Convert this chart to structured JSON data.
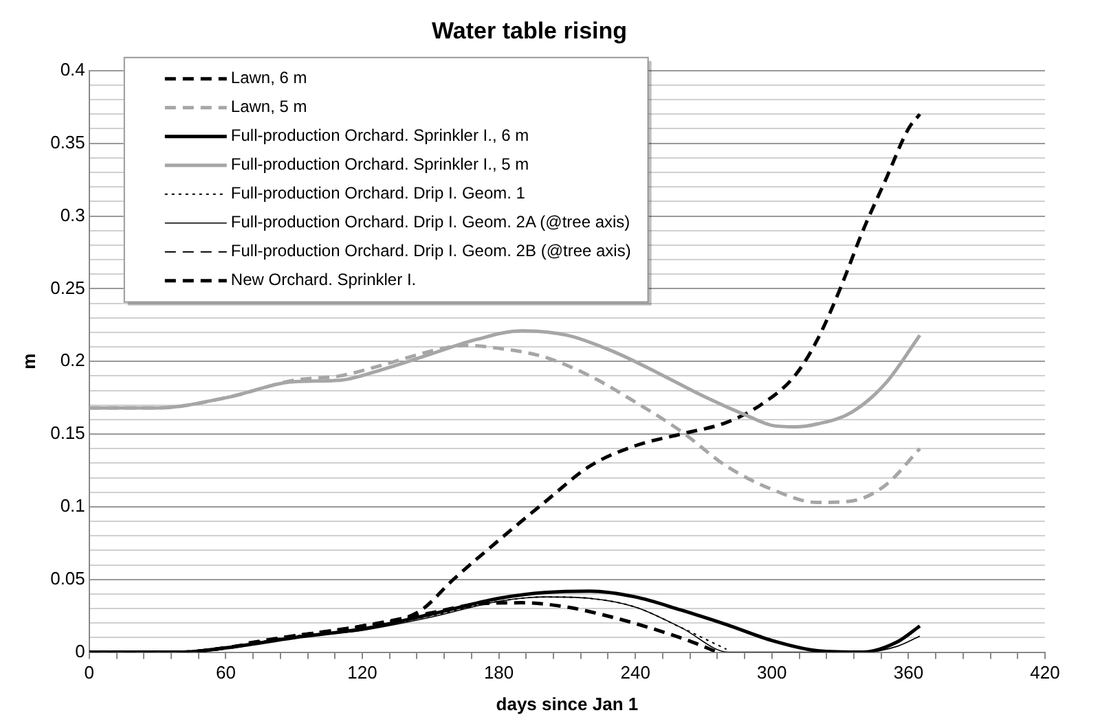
{
  "chart_data": {
    "type": "line",
    "title": "Water table rising",
    "xlabel": "days since Jan 1",
    "ylabel": "m",
    "xlim": [
      0,
      420
    ],
    "xticks": [
      0,
      {
        "value": 12,
        "label": null
      },
      {
        "value": 24,
        "label": null
      },
      {
        "value": 36,
        "label": null
      },
      {
        "value": 48,
        "label": null
      },
      60,
      {
        "value": 72,
        "label": null
      },
      {
        "value": 84,
        "label": null
      },
      {
        "value": 96,
        "label": null
      },
      {
        "value": 108,
        "label": null
      },
      120,
      {
        "value": 132,
        "label": null
      },
      {
        "value": 144,
        "label": null
      },
      {
        "value": 156,
        "label": null
      },
      {
        "value": 168,
        "label": null
      },
      180,
      {
        "value": 192,
        "label": null
      },
      {
        "value": 204,
        "label": null
      },
      {
        "value": 216,
        "label": null
      },
      {
        "value": 228,
        "label": null
      },
      240,
      {
        "value": 252,
        "label": null
      },
      {
        "value": 264,
        "label": null
      },
      {
        "value": 276,
        "label": null
      },
      {
        "value": 288,
        "label": null
      },
      300,
      {
        "value": 312,
        "label": null
      },
      {
        "value": 324,
        "label": null
      },
      {
        "value": 336,
        "label": null
      },
      {
        "value": 348,
        "label": null
      },
      360,
      {
        "value": 372,
        "label": null
      },
      {
        "value": 384,
        "label": null
      },
      {
        "value": 396,
        "label": null
      },
      {
        "value": 408,
        "label": null
      },
      420
    ],
    "ylim": [
      0,
      0.4
    ],
    "yticks": [
      0,
      {
        "value": 0.01,
        "label": null
      },
      {
        "value": 0.02,
        "label": null
      },
      {
        "value": 0.03,
        "label": null
      },
      {
        "value": 0.04,
        "label": null
      },
      0.05,
      {
        "value": 0.06,
        "label": null
      },
      {
        "value": 0.07,
        "label": null
      },
      {
        "value": 0.08,
        "label": null
      },
      {
        "value": 0.09,
        "label": null
      },
      0.1,
      {
        "value": 0.11,
        "label": null
      },
      {
        "value": 0.12,
        "label": null
      },
      {
        "value": 0.13,
        "label": null
      },
      {
        "value": 0.14,
        "label": null
      },
      0.15,
      {
        "value": 0.16,
        "label": null
      },
      {
        "value": 0.17,
        "label": null
      },
      {
        "value": 0.18,
        "label": null
      },
      {
        "value": 0.19,
        "label": null
      },
      0.2,
      {
        "value": 0.21,
        "label": null
      },
      {
        "value": 0.22,
        "label": null
      },
      {
        "value": 0.23,
        "label": null
      },
      {
        "value": 0.24,
        "label": null
      },
      0.25,
      {
        "value": 0.26,
        "label": null
      },
      {
        "value": 0.27,
        "label": null
      },
      {
        "value": 0.28,
        "label": null
      },
      {
        "value": 0.29,
        "label": null
      },
      0.3,
      {
        "value": 0.31,
        "label": null
      },
      {
        "value": 0.32,
        "label": null
      },
      {
        "value": 0.33,
        "label": null
      },
      {
        "value": 0.34,
        "label": null
      },
      0.35,
      {
        "value": 0.36,
        "label": null
      },
      {
        "value": 0.37,
        "label": null
      },
      {
        "value": 0.38,
        "label": null
      },
      {
        "value": 0.39,
        "label": null
      },
      0.4
    ],
    "grid": "y",
    "legend": "top left",
    "marker": "none",
    "series": [
      {
        "name": "Lawn, 6 m",
        "color": "#000000",
        "line_style": "dashed",
        "x": [
          0,
          40,
          60,
          90,
          120,
          150,
          170,
          190,
          210,
          230,
          250,
          265,
          276
        ],
        "values": [
          0,
          0,
          0.003,
          0.011,
          0.018,
          0.027,
          0.033,
          0.034,
          0.031,
          0.024,
          0.015,
          0.007,
          0
        ]
      },
      {
        "name": "Lawn, 5 m",
        "color": "#a6a6a6",
        "line_style": "dashed",
        "x": [
          0,
          30,
          60,
          90,
          110,
          130,
          150,
          165,
          180,
          200,
          220,
          240,
          260,
          280,
          300,
          320,
          335,
          350,
          365
        ],
        "values": [
          0.168,
          0.168,
          0.175,
          0.187,
          0.19,
          0.198,
          0.207,
          0.211,
          0.209,
          0.203,
          0.19,
          0.172,
          0.152,
          0.128,
          0.112,
          0.103,
          0.104,
          0.115,
          0.14
        ]
      },
      {
        "name": "Full-production Orchard. Sprinkler I., 6 m",
        "color": "#000000",
        "line_style": "solid",
        "x": [
          0,
          40,
          60,
          90,
          120,
          150,
          180,
          200,
          220,
          240,
          260,
          280,
          300,
          320,
          340,
          355,
          365
        ],
        "values": [
          0,
          0,
          0.003,
          0.01,
          0.016,
          0.026,
          0.037,
          0.041,
          0.042,
          0.038,
          0.029,
          0.019,
          0.008,
          0.001,
          0,
          0.007,
          0.018
        ]
      },
      {
        "name": "Full-production Orchard. Sprinkler I., 5 m",
        "color": "#a6a6a6",
        "line_style": "solid",
        "x": [
          0,
          30,
          60,
          90,
          110,
          130,
          150,
          170,
          190,
          210,
          230,
          250,
          270,
          290,
          300,
          310,
          320,
          335,
          350,
          365
        ],
        "values": [
          0.168,
          0.168,
          0.175,
          0.186,
          0.187,
          0.195,
          0.205,
          0.215,
          0.221,
          0.218,
          0.207,
          0.192,
          0.176,
          0.162,
          0.156,
          0.155,
          0.157,
          0.165,
          0.185,
          0.218
        ]
      },
      {
        "name": "Full-production Orchard. Drip I. Geom. 1",
        "color": "#000000",
        "line_style": "dotted",
        "x": [
          50,
          60,
          90,
          120,
          150,
          180,
          200,
          220,
          240,
          260,
          280
        ],
        "values": [
          0.001,
          0.003,
          0.011,
          0.016,
          0.025,
          0.035,
          0.038,
          0.037,
          0.031,
          0.017,
          0.002
        ]
      },
      {
        "name": "Full-production Orchard. Drip I. Geom. 2A (@tree axis)",
        "color": "#000000",
        "line_style": "solid",
        "x": [
          0,
          40,
          60,
          90,
          120,
          150,
          180,
          200,
          220,
          240,
          260,
          281,
          340,
          355,
          365
        ],
        "values": [
          0,
          0,
          0.003,
          0.01,
          0.015,
          0.024,
          0.035,
          0.038,
          0.037,
          0.031,
          0.017,
          0,
          0,
          0.004,
          0.011
        ]
      },
      {
        "name": "Full-production Orchard. Drip I. Geom. 2B (@tree axis)",
        "color": "#000000",
        "line_style": "dashed",
        "x": [
          70,
          90,
          120,
          150,
          170
        ],
        "values": [
          0.007,
          0.012,
          0.018,
          0.027,
          0.032
        ]
      },
      {
        "name": "New Orchard. Sprinkler I.",
        "color": "#000000",
        "line_style": "dashed",
        "x": [
          0,
          40,
          60,
          90,
          120,
          145,
          160,
          180,
          200,
          220,
          240,
          260,
          280,
          295,
          310,
          320,
          330,
          340,
          350,
          360,
          365
        ],
        "values": [
          0,
          0,
          0.003,
          0.011,
          0.018,
          0.028,
          0.05,
          0.077,
          0.103,
          0.128,
          0.142,
          0.15,
          0.158,
          0.17,
          0.19,
          0.215,
          0.25,
          0.29,
          0.325,
          0.36,
          0.37
        ]
      }
    ]
  }
}
